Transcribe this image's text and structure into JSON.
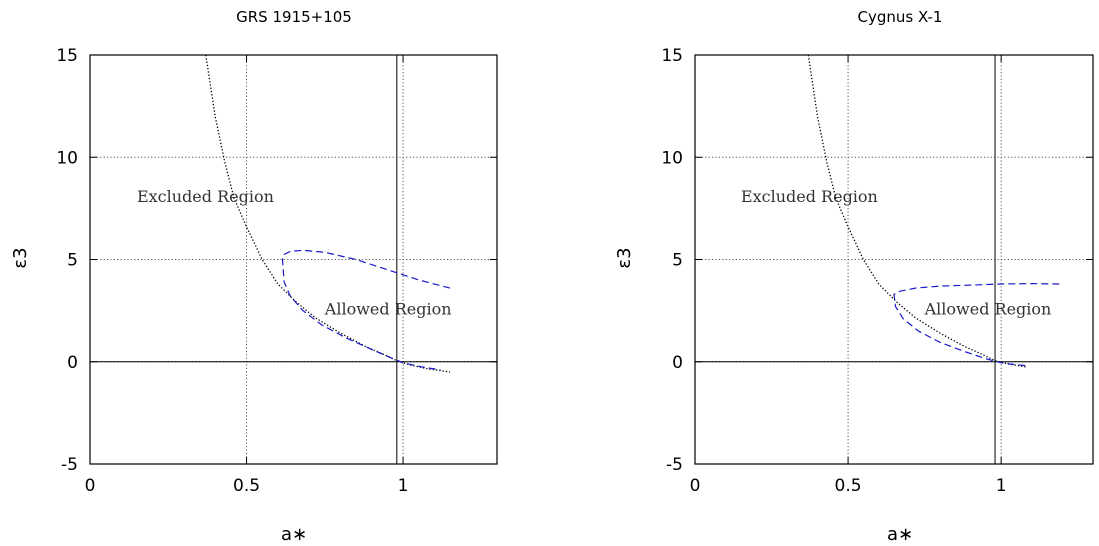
{
  "chart_data": [
    {
      "type": "line",
      "title": "GRS 1915+105",
      "xlabel": "a∗",
      "ylabel": "ε3",
      "xlim": [
        0,
        1.3
      ],
      "ylim": [
        -5,
        15
      ],
      "xticks": [
        0,
        0.5,
        1
      ],
      "yticks": [
        -5,
        0,
        5,
        10,
        15
      ],
      "xtick_labels": [
        "0",
        "0.5",
        "1"
      ],
      "ytick_labels": [
        "-5",
        "0",
        "5",
        "10",
        "15"
      ],
      "grid": true,
      "vertical_line_x": 0.98,
      "horizontal_line_y": 0,
      "annotations": [
        {
          "text": "Excluded Region",
          "x": 0.15,
          "y": 7.8
        },
        {
          "text": "Allowed Region",
          "x": 0.75,
          "y": 2.3
        }
      ],
      "series": [
        {
          "style": "dotted",
          "color": "#000000",
          "x": [
            0.37,
            0.4,
            0.43,
            0.46,
            0.5,
            0.55,
            0.6,
            0.66,
            0.72,
            0.8,
            0.88,
            0.94,
            0.98,
            1.02,
            1.08,
            1.15
          ],
          "y": [
            15.0,
            12.0,
            9.8,
            8.0,
            6.6,
            5.0,
            3.8,
            2.9,
            2.15,
            1.4,
            0.75,
            0.35,
            0.05,
            -0.15,
            -0.35,
            -0.5
          ]
        },
        {
          "style": "dashed",
          "color": "#1a1acc",
          "x": [
            1.15,
            1.05,
            0.95,
            0.85,
            0.75,
            0.68,
            0.64,
            0.62,
            0.615,
            0.62,
            0.64,
            0.68,
            0.74,
            0.82,
            0.9,
            0.96,
            1.0,
            1.06,
            1.12
          ],
          "y": [
            3.6,
            4.0,
            4.5,
            5.0,
            5.35,
            5.45,
            5.4,
            5.25,
            5.0,
            3.9,
            3.2,
            2.5,
            1.8,
            1.15,
            0.6,
            0.2,
            -0.05,
            -0.25,
            -0.4
          ]
        }
      ]
    },
    {
      "type": "line",
      "title": "Cygnus X-1",
      "xlabel": "a∗",
      "ylabel": "ε3",
      "xlim": [
        0,
        1.3
      ],
      "ylim": [
        -5,
        15
      ],
      "xticks": [
        0,
        0.5,
        1
      ],
      "yticks": [
        -5,
        0,
        5,
        10,
        15
      ],
      "xtick_labels": [
        "0",
        "0.5",
        "1"
      ],
      "ytick_labels": [
        "-5",
        "0",
        "5",
        "10",
        "15"
      ],
      "grid": true,
      "vertical_line_x": 0.98,
      "horizontal_line_y": 0,
      "annotations": [
        {
          "text": "Excluded Region",
          "x": 0.15,
          "y": 7.8
        },
        {
          "text": "Allowed Region",
          "x": 0.75,
          "y": 2.3
        }
      ],
      "series": [
        {
          "style": "dotted",
          "color": "#000000",
          "x": [
            0.37,
            0.4,
            0.43,
            0.46,
            0.5,
            0.55,
            0.6,
            0.66,
            0.72,
            0.8,
            0.88,
            0.94,
            0.98,
            1.02,
            1.08
          ],
          "y": [
            15.0,
            12.0,
            9.8,
            8.0,
            6.6,
            5.0,
            3.8,
            2.9,
            2.15,
            1.4,
            0.75,
            0.35,
            0.05,
            -0.1,
            -0.25
          ]
        },
        {
          "style": "dashed",
          "color": "#1a1acc",
          "x": [
            1.19,
            1.1,
            1.0,
            0.9,
            0.8,
            0.72,
            0.67,
            0.65,
            0.655,
            0.68,
            0.73,
            0.8,
            0.88,
            0.95,
            1.0,
            1.05,
            1.09
          ],
          "y": [
            3.8,
            3.82,
            3.8,
            3.75,
            3.7,
            3.6,
            3.45,
            3.3,
            2.7,
            2.1,
            1.5,
            0.95,
            0.5,
            0.15,
            -0.05,
            -0.15,
            -0.2
          ]
        }
      ]
    }
  ]
}
